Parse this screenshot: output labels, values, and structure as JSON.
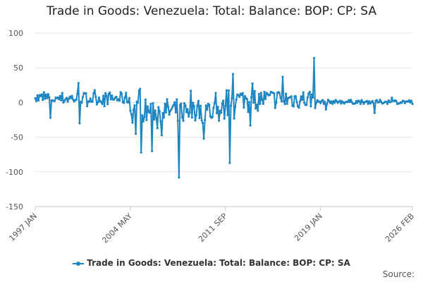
{
  "chart_data": {
    "type": "line",
    "title": "Trade in Goods: Venezuela: Total: Balance: BOP: CP: SA",
    "series_name": "Trade in Goods: Venezuela: Total: Balance: BOP: CP: SA",
    "color": "#1f86c2",
    "ylim": [
      -150,
      100
    ],
    "yticks": [
      -150,
      -100,
      -50,
      0,
      50,
      100
    ],
    "x_start": "1997 JAN",
    "x_end": "2026 FEB",
    "xtick_labels": [
      "1997 JAN",
      "2004 MAY",
      "2011 SEP",
      "2019 JAN",
      "2026 FEB"
    ],
    "xlabel": "",
    "ylabel": "",
    "key_points": [
      {
        "date": "1997 JAN",
        "value": 6
      },
      {
        "date": "1998 JAN",
        "value": 12
      },
      {
        "date": "1998 MAR",
        "value": -22
      },
      {
        "date": "2000 MAY",
        "value": 28
      },
      {
        "date": "2000 JUN",
        "value": -30
      },
      {
        "date": "2004 OCT",
        "value": -45
      },
      {
        "date": "2005 JAN",
        "value": 17
      },
      {
        "date": "2005 MAR",
        "value": -72
      },
      {
        "date": "2006 JAN",
        "value": -70
      },
      {
        "date": "2008 FEB",
        "value": -108
      },
      {
        "date": "2009 JAN",
        "value": 17
      },
      {
        "date": "2010 JAN",
        "value": -52
      },
      {
        "date": "2012 JAN",
        "value": -87
      },
      {
        "date": "2012 APR",
        "value": 41
      },
      {
        "date": "2013 AUG",
        "value": -33
      },
      {
        "date": "2016 FEB",
        "value": 37
      },
      {
        "date": "2018 JUL",
        "value": 64
      },
      {
        "date": "2019 JUN",
        "value": -10
      },
      {
        "date": "2023 MAR",
        "value": -15
      },
      {
        "date": "2026 FEB",
        "value": -2
      }
    ]
  },
  "legend": {
    "label": "Trade in Goods: Venezuela: Total: Balance: BOP: CP: SA"
  },
  "source": {
    "label": "Source:"
  }
}
